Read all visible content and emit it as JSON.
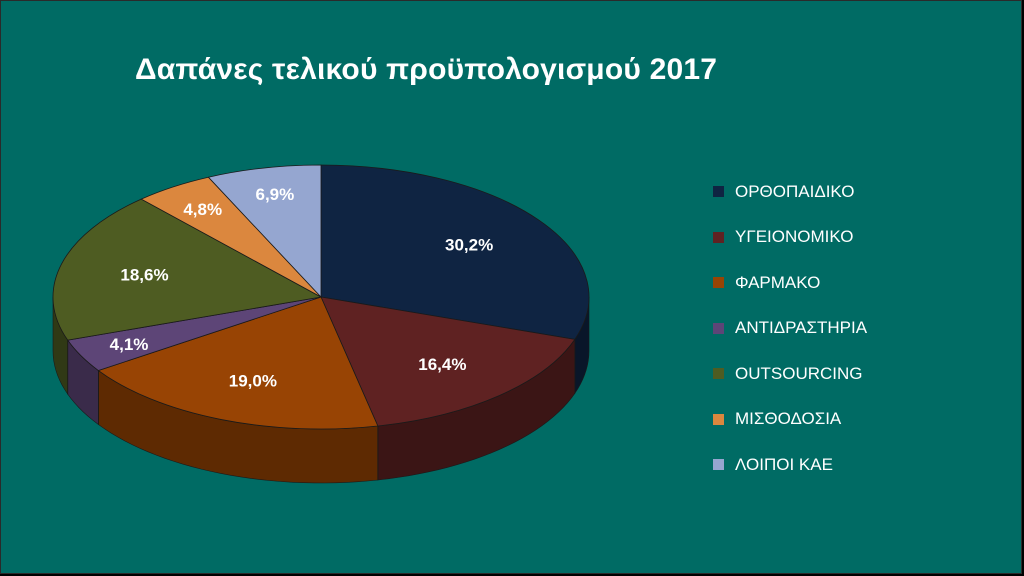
{
  "chart_data": {
    "type": "pie",
    "style": "3d",
    "title": "Δαπάνες τελικού προϋπολογισμού 2017",
    "slices": [
      {
        "label": "ΟΡΘΟΠΑΙΔΙΚΟ",
        "value": 30.2,
        "value_label": "30,2%",
        "color": "#0F2442"
      },
      {
        "label": "ΥΓΕΙΟΝΟΜΙΚΟ",
        "value": 16.4,
        "value_label": "16,4%",
        "color": "#5F2222"
      },
      {
        "label": "ΦΑΡΜΑΚΟ",
        "value": 19.0,
        "value_label": "19,0%",
        "color": "#984404"
      },
      {
        "label": "ΑΝΤΙΔΡΑΣΤΗΡΙΑ",
        "value": 4.1,
        "value_label": "4,1%",
        "color": "#5D4577"
      },
      {
        "label": "OUTSOURCING",
        "value": 18.6,
        "value_label": "18,6%",
        "color": "#4E5C22"
      },
      {
        "label": "ΜΙΣΘΟΔΟΣΙΑ",
        "value": 4.8,
        "value_label": "4,8%",
        "color": "#DB873E"
      },
      {
        "label": "ΛΟΙΠΟΙ ΚΑΕ",
        "value": 6.9,
        "value_label": "6,9%",
        "color": "#95A6D0"
      }
    ],
    "legend_position": "right"
  }
}
